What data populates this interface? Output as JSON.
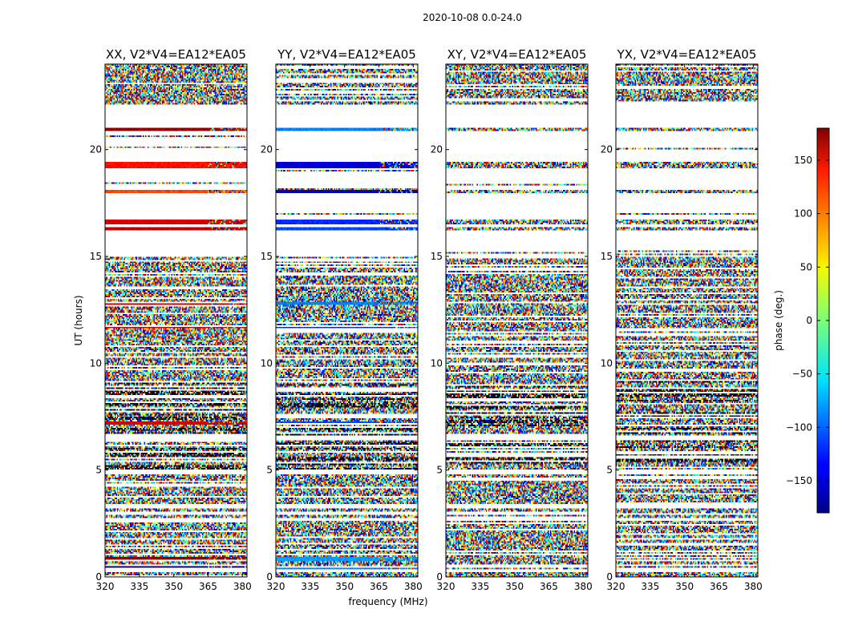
{
  "chart_data": {
    "type": "heatmap",
    "suptitle": "2020-10-08 0.0-24.0",
    "xlabel": "frequency (MHz)",
    "ylabel": "UT (hours)",
    "xlim": [
      320,
      382
    ],
    "ylim": [
      0,
      24
    ],
    "xticks": [
      320,
      335,
      350,
      365,
      380
    ],
    "yticks": [
      0,
      5,
      10,
      15,
      20
    ],
    "panels": [
      {
        "title": "XX, V2*V4=EA12*EA05",
        "pol": "XX"
      },
      {
        "title": "YY, V2*V4=EA12*EA05",
        "pol": "YY"
      },
      {
        "title": "XY, V2*V4=EA12*EA05",
        "pol": "XY"
      },
      {
        "title": "YX, V2*V4=EA12*EA05",
        "pol": "YX"
      }
    ],
    "colorbar": {
      "label": "phase (deg.)",
      "range": [
        -180,
        180
      ],
      "ticks": [
        -150,
        -100,
        -50,
        0,
        50,
        100,
        150
      ],
      "tick_labels": [
        "−150",
        "−100",
        "−50",
        "0",
        "50",
        "100",
        "150"
      ],
      "colormap": "jet"
    },
    "blank_bands_hours": [
      [
        21.5,
        22.1
      ],
      [
        21.1,
        21.5
      ],
      [
        20.2,
        20.6
      ],
      [
        19.5,
        19.8
      ],
      [
        18.5,
        19.0
      ],
      [
        17.2,
        17.5
      ],
      [
        15.3,
        16.2
      ],
      [
        6.4,
        6.6
      ],
      [
        4.8,
        5.0
      ],
      [
        3.2,
        3.4
      ],
      [
        2.6,
        2.8
      ],
      [
        0.2,
        0.4
      ]
    ],
    "coherent_phase_bands": [
      {
        "t": [
          20.85,
          21.0
        ],
        "XX": 175,
        "YY": -90
      },
      {
        "t": [
          20.4,
          20.55
        ],
        "XX": 160,
        "YY": -100
      },
      {
        "t": [
          19.15,
          19.4
        ],
        "XX": 130,
        "YY": -150
      },
      {
        "t": [
          17.95,
          18.1
        ],
        "XX": 110,
        "YY": -160
      },
      {
        "t": [
          16.5,
          16.7
        ],
        "XX": 150,
        "YY": -120
      },
      {
        "t": [
          16.2,
          16.35
        ],
        "XX": 160,
        "YY": -110
      },
      {
        "t": [
          12.7,
          12.9
        ],
        "XX": 150,
        "YY": -90
      },
      {
        "t": [
          11.6,
          11.75
        ],
        "XX": 145,
        "YY": -120
      },
      {
        "t": [
          7.15,
          7.3
        ],
        "XX": 150,
        "YY": -110
      },
      {
        "t": [
          0.75,
          0.95
        ],
        "XX": 175,
        "YY": -80
      },
      {
        "t": [
          0.35,
          0.5
        ],
        "XX": -170,
        "YY": -90
      }
    ]
  }
}
